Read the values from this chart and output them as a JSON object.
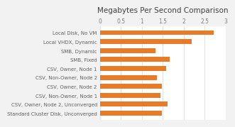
{
  "title": "Megabytes Per Second Comparison",
  "categories": [
    "Standard Cluster Disk, Unconverged",
    "CSV, Owner, Node 2, Unconverged",
    "CSV, Non-Owner, Node 1",
    "CSV, Owner, Node 2",
    "CSV, Non-Owner, Node 2",
    "CSV, Owner, Node 1",
    "SMB, Fixed",
    "SMB, Dynamic",
    "Local VHDX, Dynamic",
    "Local Disk, No VM"
  ],
  "values": [
    1.48,
    1.62,
    1.45,
    1.47,
    1.35,
    1.58,
    1.67,
    1.32,
    2.18,
    2.72
  ],
  "bar_color": "#E87B28",
  "xlim": [
    0,
    3
  ],
  "xticks": [
    0,
    0.5,
    1,
    1.5,
    2,
    2.5,
    3
  ],
  "background_color": "#F2F2F2",
  "plot_bg_color": "#FFFFFF",
  "title_fontsize": 7.5,
  "tick_fontsize": 5.5,
  "label_fontsize": 5.0
}
